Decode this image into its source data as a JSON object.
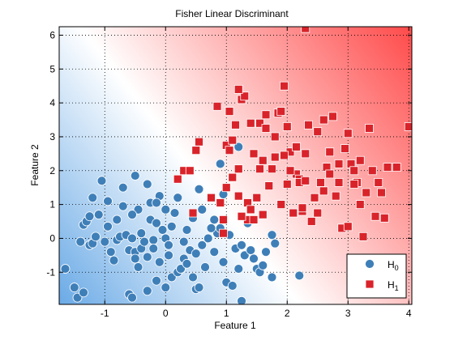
{
  "chart_data": {
    "type": "scatter",
    "title": "Fisher Linear Discriminant",
    "xlabel": "Feature 1",
    "ylabel": "Feature 2",
    "xlim": [
      -1.75,
      4.05
    ],
    "ylim": [
      -1.95,
      6.25
    ],
    "xticks": [
      -1,
      0,
      1,
      2,
      3,
      4
    ],
    "yticks": [
      -1,
      0,
      1,
      2,
      3,
      4,
      5,
      6
    ],
    "grid": true,
    "legend_position": "bottom-right",
    "background": "class-probability gradient, blue (H0) bottom-left to red (H1) top-right",
    "colors": {
      "H0": "#3f7fb8",
      "H1": "#d9232a",
      "gradient_blue": "#6aaae6",
      "gradient_red": "#ff4a4a"
    },
    "series": [
      {
        "name_base": "H",
        "name_sub": "0",
        "marker": "circle",
        "points": [
          [
            -1.65,
            -0.9
          ],
          [
            -1.5,
            -1.45
          ],
          [
            -1.45,
            -1.75
          ],
          [
            -1.35,
            -1.6
          ],
          [
            -1.25,
            -0.2
          ],
          [
            -1.2,
            -0.15
          ],
          [
            -1.4,
            -0.1
          ],
          [
            -1.35,
            0.4
          ],
          [
            -1.3,
            0.5
          ],
          [
            -1.2,
            1.2
          ],
          [
            -1.25,
            0.65
          ],
          [
            -1.1,
            0.7
          ],
          [
            -1.05,
            1.7
          ],
          [
            -0.95,
            1.1
          ],
          [
            -0.9,
            -0.4
          ],
          [
            -0.85,
            -0.65
          ],
          [
            -0.8,
            -0.05
          ],
          [
            -0.75,
            0.05
          ],
          [
            -0.7,
            1.5
          ],
          [
            -0.65,
            0.1
          ],
          [
            -0.6,
            -0.35
          ],
          [
            -0.55,
            0.0
          ],
          [
            -0.5,
            -0.4
          ],
          [
            -0.5,
            -0.6
          ],
          [
            -0.45,
            -0.85
          ],
          [
            -0.4,
            -0.3
          ],
          [
            -0.4,
            0.15
          ],
          [
            -0.35,
            -0.1
          ],
          [
            -0.3,
            -0.55
          ],
          [
            -0.25,
            0.55
          ],
          [
            -0.25,
            1.05
          ],
          [
            -0.2,
            -0.05
          ],
          [
            -0.15,
            0.45
          ],
          [
            -0.1,
            -0.7
          ],
          [
            -0.05,
            0.25
          ],
          [
            0.0,
            0.0
          ],
          [
            0.05,
            -0.2
          ],
          [
            -0.6,
            -1.65
          ],
          [
            -0.55,
            -1.75
          ],
          [
            -0.3,
            -1.55
          ],
          [
            -0.15,
            -1.25
          ],
          [
            0.0,
            -1.45
          ],
          [
            0.1,
            -1.15
          ],
          [
            0.2,
            -1.0
          ],
          [
            0.25,
            -0.9
          ],
          [
            0.3,
            -0.6
          ],
          [
            0.35,
            -0.75
          ],
          [
            0.4,
            -0.35
          ],
          [
            0.5,
            -1.5
          ],
          [
            0.55,
            -1.45
          ],
          [
            0.6,
            -0.2
          ],
          [
            0.7,
            0.0
          ],
          [
            0.8,
            -0.4
          ],
          [
            0.85,
            0.15
          ],
          [
            0.9,
            0.3
          ],
          [
            0.95,
            -0.7
          ],
          [
            1.0,
            -1.3
          ],
          [
            1.05,
            0.1
          ],
          [
            1.1,
            -1.4
          ],
          [
            1.15,
            -0.3
          ],
          [
            1.2,
            -0.9
          ],
          [
            1.25,
            -0.2
          ],
          [
            1.3,
            -0.5
          ],
          [
            1.35,
            0.45
          ],
          [
            1.4,
            -0.35
          ],
          [
            1.45,
            -0.6
          ],
          [
            1.5,
            -0.9
          ],
          [
            1.55,
            -1.0
          ],
          [
            1.6,
            -0.8
          ],
          [
            1.65,
            -0.4
          ],
          [
            1.75,
            0.1
          ],
          [
            1.8,
            -0.15
          ],
          [
            1.75,
            -1.15
          ],
          [
            1.25,
            -1.85
          ],
          [
            1.2,
            2.7
          ],
          [
            0.9,
            2.2
          ],
          [
            0.95,
            1.3
          ],
          [
            0.55,
            1.45
          ],
          [
            0.6,
            0.85
          ],
          [
            0.8,
            0.55
          ],
          [
            0.75,
            0.3
          ],
          [
            0.45,
            0.6
          ],
          [
            0.35,
            0.25
          ],
          [
            0.2,
            1.2
          ],
          [
            0.15,
            0.75
          ],
          [
            -0.1,
            1.25
          ],
          [
            -0.15,
            1.05
          ],
          [
            0.0,
            0.85
          ],
          [
            -0.5,
            1.85
          ],
          [
            -0.45,
            0.85
          ],
          [
            -0.3,
            1.6
          ],
          [
            -0.7,
            0.95
          ],
          [
            -0.8,
            0.55
          ],
          [
            -0.55,
            0.7
          ],
          [
            -1.0,
            -0.1
          ],
          [
            -1.15,
            0.05
          ],
          [
            -0.95,
            0.35
          ],
          [
            2.2,
            -1.1
          ],
          [
            0.1,
            0.35
          ],
          [
            0.05,
            -0.5
          ],
          [
            -0.2,
            -0.3
          ],
          [
            0.3,
            -0.1
          ],
          [
            0.5,
            -0.45
          ],
          [
            0.65,
            -0.85
          ],
          [
            0.45,
            -1.15
          ]
        ]
      },
      {
        "name_base": "H",
        "name_sub": "1",
        "marker": "square",
        "points": [
          [
            0.2,
            1.75
          ],
          [
            0.3,
            2.0
          ],
          [
            0.4,
            2.0
          ],
          [
            0.45,
            0.75
          ],
          [
            0.5,
            2.6
          ],
          [
            0.55,
            2.85
          ],
          [
            0.75,
            1.2
          ],
          [
            0.85,
            3.9
          ],
          [
            0.9,
            1.05
          ],
          [
            0.95,
            0.55
          ],
          [
            1.0,
            2.75
          ],
          [
            1.05,
            2.6
          ],
          [
            1.1,
            1.8
          ],
          [
            1.15,
            3.35
          ],
          [
            1.2,
            2.05
          ],
          [
            1.25,
            4.1
          ],
          [
            1.3,
            4.2
          ],
          [
            1.35,
            1.05
          ],
          [
            1.4,
            0.85
          ],
          [
            1.45,
            2.5
          ],
          [
            1.5,
            1.2
          ],
          [
            1.55,
            3.4
          ],
          [
            1.6,
            2.3
          ],
          [
            1.65,
            3.65
          ],
          [
            1.7,
            1.55
          ],
          [
            1.75,
            2.05
          ],
          [
            1.8,
            3.0
          ],
          [
            1.85,
            3.7
          ],
          [
            1.9,
            1.0
          ],
          [
            1.95,
            4.5
          ],
          [
            2.0,
            1.6
          ],
          [
            2.05,
            2.55
          ],
          [
            2.1,
            0.75
          ],
          [
            2.15,
            1.9
          ],
          [
            2.2,
            1.75
          ],
          [
            2.25,
            0.8
          ],
          [
            2.3,
            2.5
          ],
          [
            2.35,
            3.35
          ],
          [
            2.4,
            0.5
          ],
          [
            2.45,
            1.2
          ],
          [
            2.5,
            3.15
          ],
          [
            2.55,
            1.65
          ],
          [
            2.6,
            3.5
          ],
          [
            2.65,
            2.1
          ],
          [
            2.7,
            1.9
          ],
          [
            2.75,
            3.6
          ],
          [
            2.8,
            1.25
          ],
          [
            2.85,
            1.65
          ],
          [
            2.9,
            0.3
          ],
          [
            2.95,
            2.65
          ],
          [
            3.0,
            3.1
          ],
          [
            3.05,
            2.2
          ],
          [
            3.1,
            2.0
          ],
          [
            3.15,
            1.65
          ],
          [
            3.2,
            1.0
          ],
          [
            3.25,
            0.05
          ],
          [
            3.3,
            1.35
          ],
          [
            3.35,
            3.25
          ],
          [
            3.4,
            2.0
          ],
          [
            3.45,
            0.65
          ],
          [
            3.5,
            1.65
          ],
          [
            3.55,
            1.35
          ],
          [
            3.65,
            2.1
          ],
          [
            3.8,
            2.1
          ],
          [
            4.0,
            3.3
          ],
          [
            2.3,
            6.2
          ],
          [
            1.2,
            4.4
          ],
          [
            1.05,
            3.75
          ],
          [
            1.9,
            3.75
          ],
          [
            2.15,
            2.7
          ],
          [
            2.5,
            0.75
          ],
          [
            1.95,
            2.45
          ],
          [
            2.2,
            1.65
          ],
          [
            2.05,
            2.0
          ],
          [
            2.25,
            0.9
          ],
          [
            1.6,
            0.7
          ],
          [
            1.35,
            0.55
          ],
          [
            0.95,
            0.15
          ],
          [
            1.25,
            0.65
          ],
          [
            1.45,
            0.55
          ],
          [
            1.0,
            1.5
          ],
          [
            1.2,
            1.25
          ],
          [
            1.1,
            2.9
          ],
          [
            1.4,
            3.4
          ],
          [
            1.65,
            3.25
          ],
          [
            1.8,
            2.4
          ],
          [
            1.55,
            2.05
          ],
          [
            2.0,
            3.3
          ],
          [
            2.3,
            1.7
          ],
          [
            2.85,
            2.2
          ],
          [
            3.0,
            0.35
          ],
          [
            3.1,
            1.6
          ],
          [
            3.2,
            2.3
          ],
          [
            2.6,
            1.4
          ],
          [
            2.7,
            2.55
          ],
          [
            3.6,
            0.6
          ]
        ]
      }
    ]
  }
}
